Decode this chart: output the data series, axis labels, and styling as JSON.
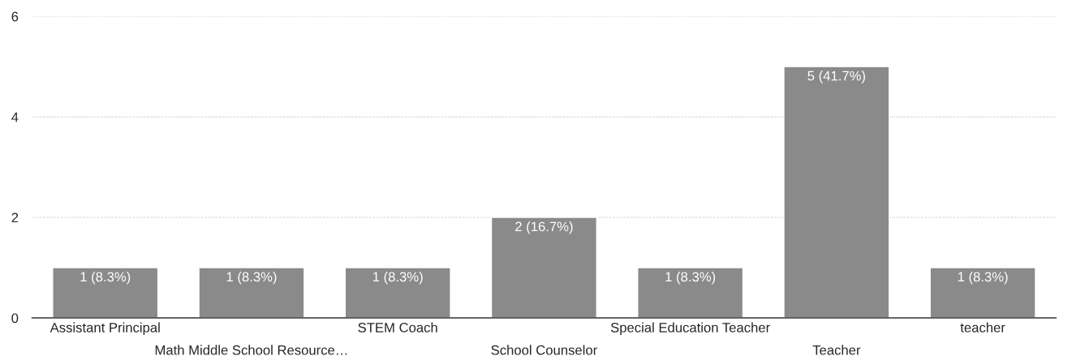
{
  "chart_data": {
    "type": "bar",
    "categories": [
      "Assistant Principal",
      "Math Middle School Resource…",
      "STEM Coach",
      "School Counselor",
      "Special Education Teacher",
      "Teacher",
      "teacher"
    ],
    "values": [
      1,
      1,
      1,
      2,
      1,
      5,
      1
    ],
    "value_labels": [
      "1 (8.3%)",
      "1 (8.3%)",
      "1 (8.3%)",
      "2 (16.7%)",
      "1 (8.3%)",
      "5 (41.7%)",
      "1 (8.3%)"
    ],
    "color": "#8a8a8a",
    "ylim": [
      0,
      6
    ],
    "yticks": [
      0,
      2,
      4,
      6
    ],
    "grid": "y",
    "legend": false
  }
}
